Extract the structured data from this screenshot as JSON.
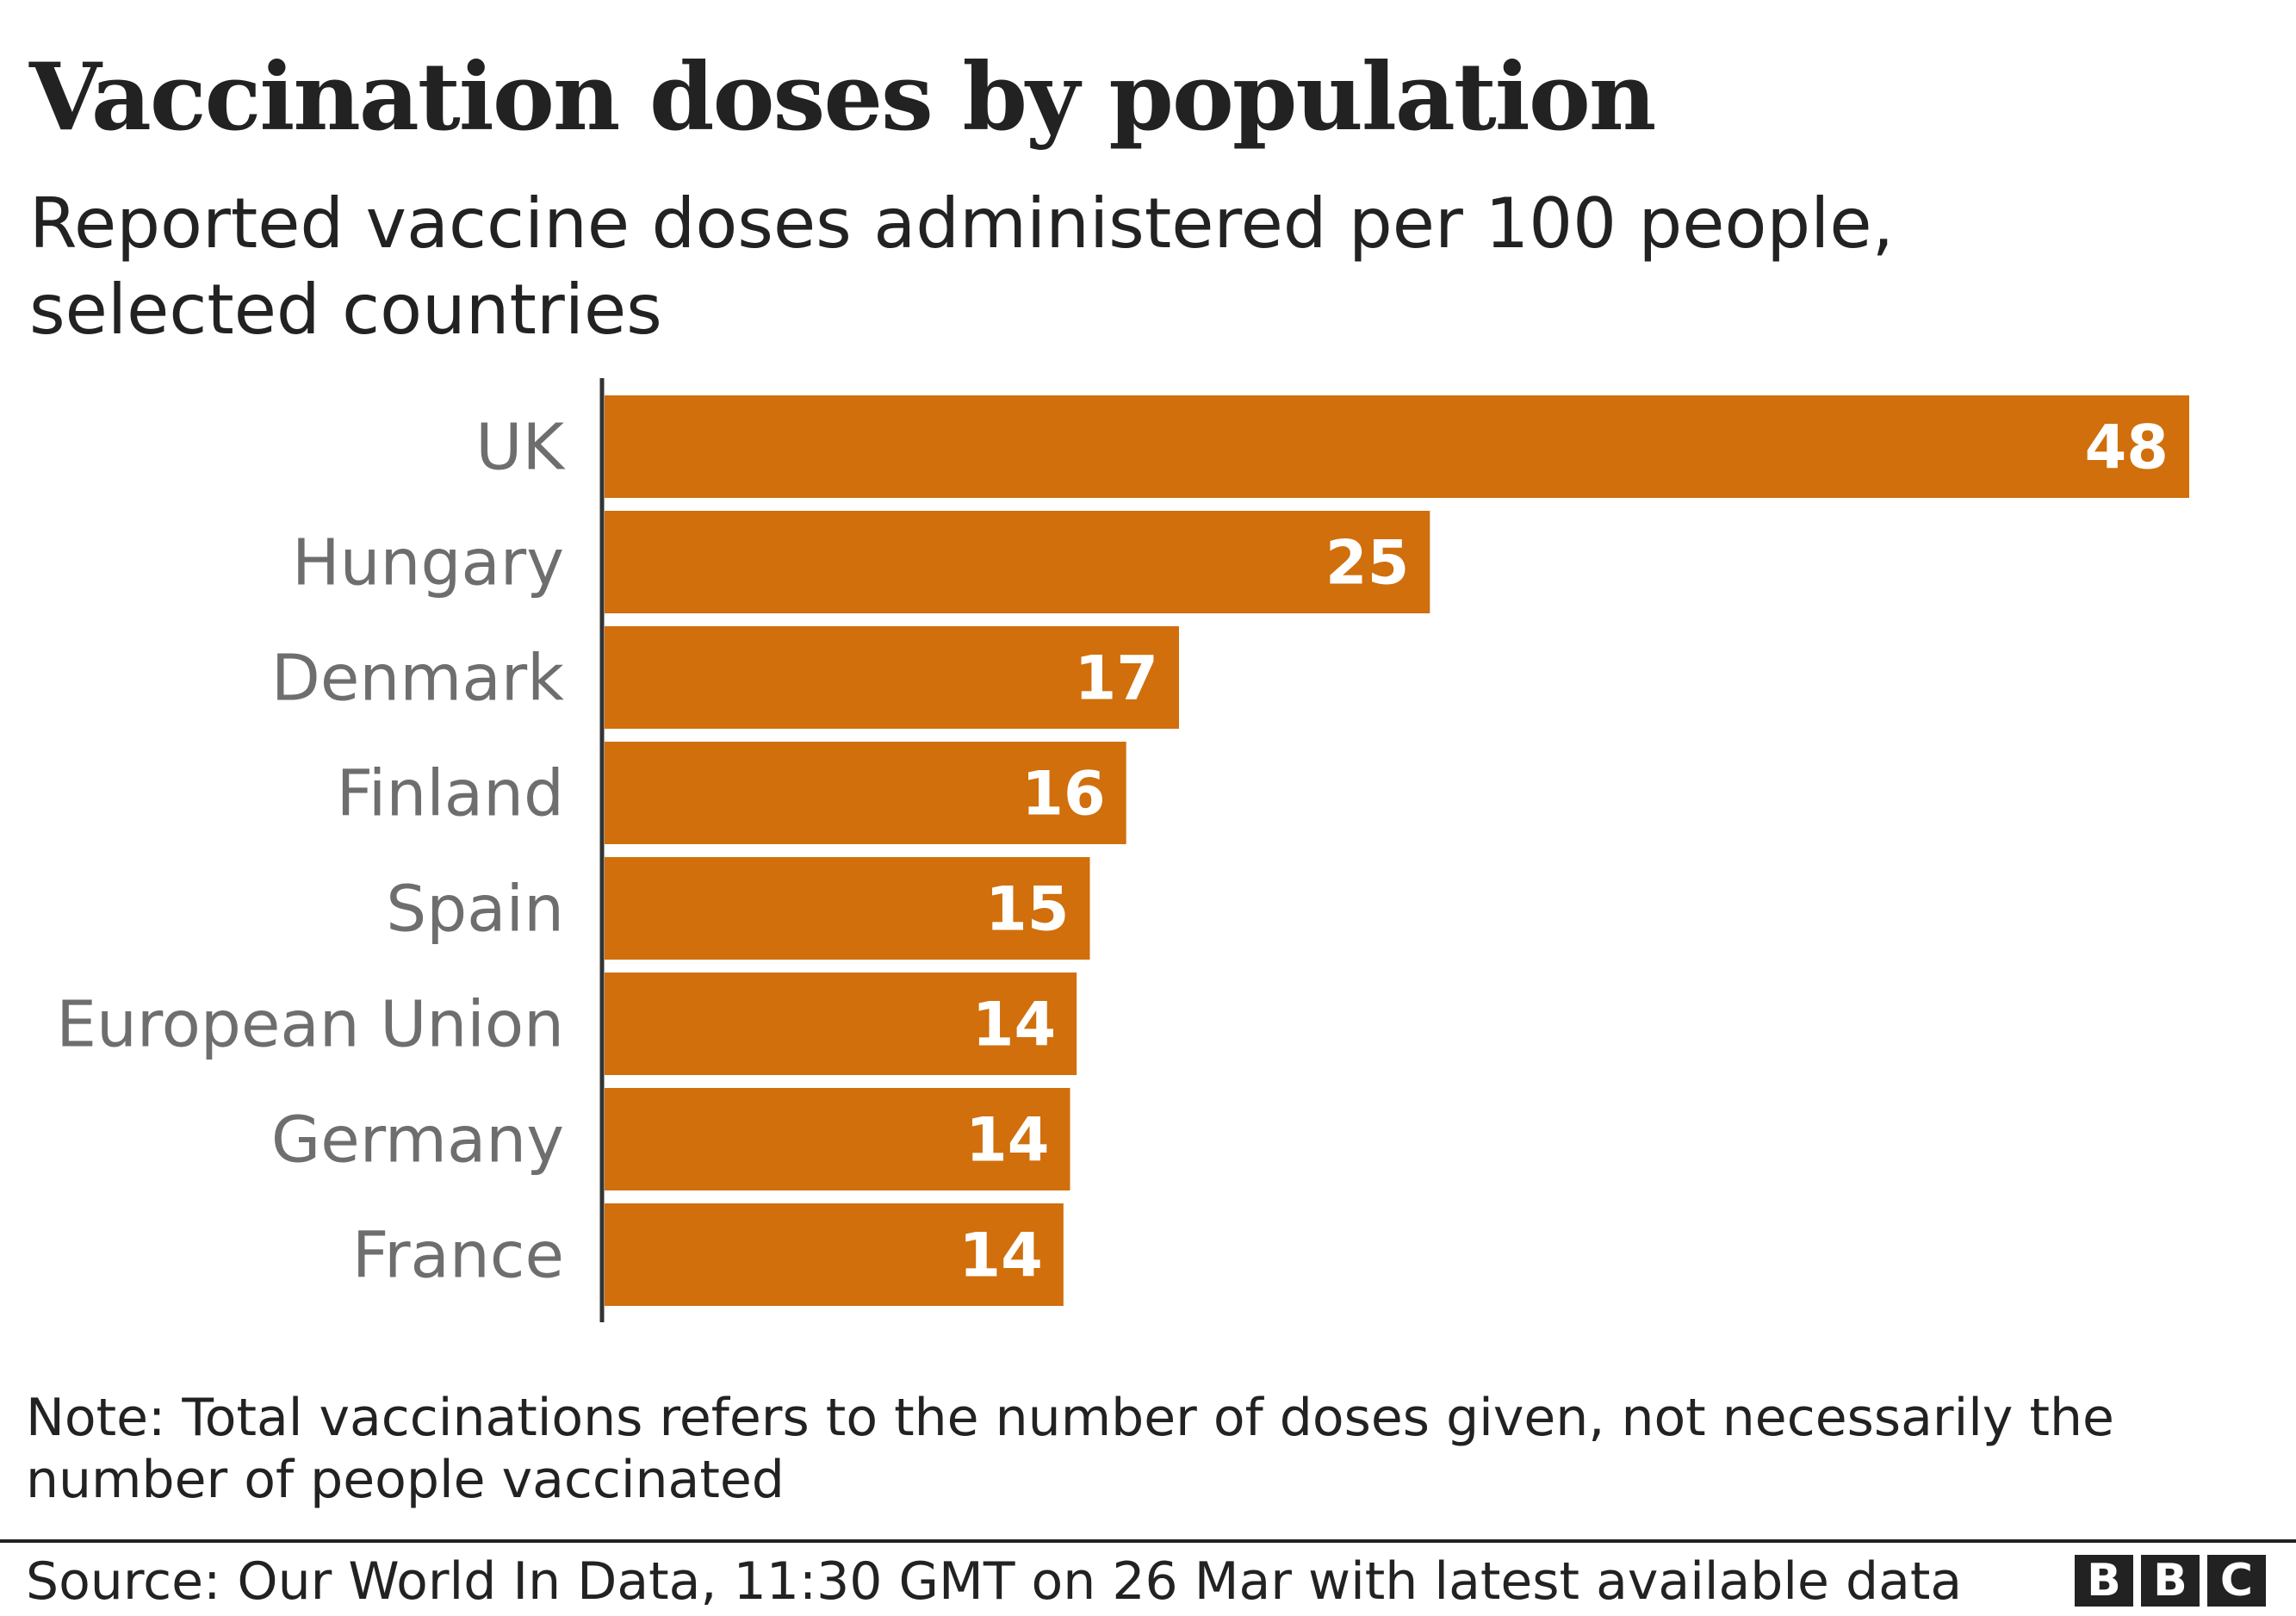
{
  "chart_data": {
    "type": "bar",
    "orientation": "horizontal",
    "title": "Vaccination doses by population",
    "subtitle": "Reported vaccine doses administered per 100 people, selected countries",
    "categories": [
      "UK",
      "Hungary",
      "Denmark",
      "Finland",
      "Spain",
      "European Union",
      "Germany",
      "France"
    ],
    "values": [
      48,
      25,
      17.4,
      15.8,
      14.7,
      14.3,
      14.1,
      13.9
    ],
    "value_labels": [
      "48",
      "25",
      "17",
      "16",
      "15",
      "14",
      "14",
      "14"
    ],
    "xlim": [
      0,
      48
    ],
    "grid": false,
    "bar_color": "#d06f0c",
    "label_color": "#ffffff",
    "category_color": "#6e6e6e"
  },
  "note": "Note: Total vaccinations refers to the number of doses given, not necessarily the number of people vaccinated",
  "source": "Source: Our World In Data, 11:30 GMT on 26 Mar with latest available data",
  "logo": {
    "text": [
      "B",
      "B",
      "C"
    ]
  }
}
